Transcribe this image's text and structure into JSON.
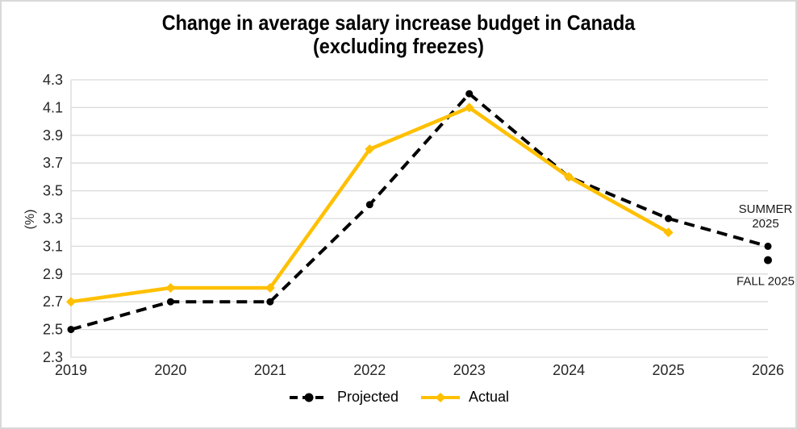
{
  "chart": {
    "title_line1": "Change in average salary increase budget in Canada",
    "title_line2": "(excluding freezes)",
    "ylabel": "(%)"
  },
  "chart_data": {
    "type": "line",
    "title": "Change in average salary increase budget in Canada (excluding freezes)",
    "xlabel": "",
    "ylabel": "(%)",
    "categories": [
      "2019",
      "2020",
      "2021",
      "2022",
      "2023",
      "2024",
      "2025",
      "2026"
    ],
    "ylim": [
      2.3,
      4.3
    ],
    "yticks": [
      4.3,
      4.1,
      3.9,
      3.7,
      3.5,
      3.3,
      3.1,
      2.9,
      2.7,
      2.5,
      2.3
    ],
    "grid": true,
    "legend_position": "bottom",
    "series": [
      {
        "name": "Projected",
        "color": "#000000",
        "style": "dashed",
        "marker": "circle",
        "values": [
          2.5,
          2.7,
          2.7,
          3.4,
          4.2,
          3.6,
          3.3,
          3.1
        ]
      },
      {
        "name": "Actual",
        "color": "#FFC000",
        "style": "solid",
        "marker": "diamond",
        "values": [
          2.7,
          2.8,
          2.8,
          3.8,
          4.1,
          3.6,
          3.2,
          null
        ]
      }
    ],
    "extra_points": [
      {
        "series": "Projected",
        "category": "2026",
        "value": 3.0,
        "label": "FALL 2025"
      }
    ],
    "annotations": [
      {
        "lines": [
          "SUMMER",
          "2025"
        ],
        "anchor_category": "2026",
        "anchor_value": 3.34
      },
      {
        "lines": [
          "FALL 2025"
        ],
        "anchor_category": "2026",
        "anchor_value": 2.82
      }
    ],
    "colors": {
      "grid": "#d9d9d9",
      "axis_text": "#262626",
      "annotation_text": "#1a1a1a",
      "background": "#ffffff",
      "frame_border": "#d9d9d9"
    }
  }
}
